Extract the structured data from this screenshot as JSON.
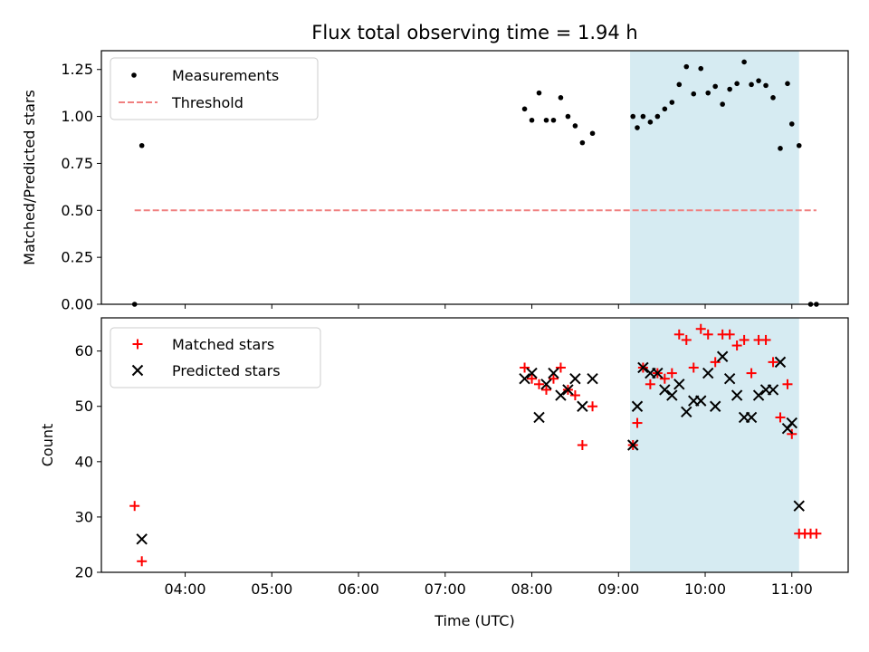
{
  "chart_data": [
    {
      "type": "scatter",
      "title": "Flux total observing time = 1.94 h",
      "xlabel": "",
      "ylabel": "Matched/Predicted stars",
      "ylim": [
        0,
        1.35
      ],
      "yticks": [
        "0.00",
        "0.25",
        "0.50",
        "0.75",
        "1.00",
        "1.25"
      ],
      "xlim": [
        "03:02",
        "11:39"
      ],
      "highlight_span": [
        "09:08",
        "11:05"
      ],
      "highlight_color": "#add8e6",
      "legend_position": "upper left",
      "series": [
        {
          "name": "Measurements",
          "marker": "dot",
          "color": "#000000",
          "points": [
            [
              "03:25",
              0.0
            ],
            [
              "03:30",
              0.845
            ],
            [
              "07:55",
              1.04
            ],
            [
              "08:00",
              0.98
            ],
            [
              "08:05",
              1.125
            ],
            [
              "08:10",
              0.98
            ],
            [
              "08:15",
              0.98
            ],
            [
              "08:20",
              1.1
            ],
            [
              "08:25",
              1.0
            ],
            [
              "08:30",
              0.95
            ],
            [
              "08:35",
              0.86
            ],
            [
              "08:42",
              0.91
            ],
            [
              "09:10",
              1.0
            ],
            [
              "09:13",
              0.94
            ],
            [
              "09:17",
              1.0
            ],
            [
              "09:22",
              0.97
            ],
            [
              "09:27",
              1.0
            ],
            [
              "09:32",
              1.04
            ],
            [
              "09:37",
              1.075
            ],
            [
              "09:42",
              1.17
            ],
            [
              "09:47",
              1.265
            ],
            [
              "09:52",
              1.12
            ],
            [
              "09:57",
              1.255
            ],
            [
              "10:02",
              1.125
            ],
            [
              "10:07",
              1.16
            ],
            [
              "10:12",
              1.065
            ],
            [
              "10:17",
              1.145
            ],
            [
              "10:22",
              1.175
            ],
            [
              "10:27",
              1.29
            ],
            [
              "10:32",
              1.17
            ],
            [
              "10:37",
              1.19
            ],
            [
              "10:42",
              1.165
            ],
            [
              "10:47",
              1.1
            ],
            [
              "10:52",
              0.83
            ],
            [
              "10:57",
              1.175
            ],
            [
              "11:00",
              0.96
            ],
            [
              "11:05",
              0.845
            ],
            [
              "11:13",
              0.0
            ],
            [
              "11:17",
              0.0
            ]
          ]
        },
        {
          "name": "Threshold",
          "marker": "dashed-line",
          "color": "#f08080",
          "points": [
            [
              "03:25",
              0.5
            ],
            [
              "11:17",
              0.5
            ]
          ]
        }
      ]
    },
    {
      "type": "scatter",
      "title": "",
      "xlabel": "Time (UTC)",
      "ylabel": "Count",
      "ylim": [
        20,
        66
      ],
      "yticks": [
        "20",
        "30",
        "40",
        "50",
        "60"
      ],
      "xlim": [
        "03:02",
        "11:39"
      ],
      "xticks": [
        "04:00",
        "05:00",
        "06:00",
        "07:00",
        "08:00",
        "09:00",
        "10:00",
        "11:00"
      ],
      "highlight_span": [
        "09:08",
        "11:05"
      ],
      "highlight_color": "#add8e6",
      "legend_position": "upper left",
      "series": [
        {
          "name": "Matched stars",
          "marker": "plus",
          "color": "#ff0000",
          "points": [
            [
              "03:25",
              32
            ],
            [
              "03:30",
              22
            ],
            [
              "07:55",
              57
            ],
            [
              "08:00",
              55
            ],
            [
              "08:05",
              54
            ],
            [
              "08:10",
              53
            ],
            [
              "08:15",
              55
            ],
            [
              "08:20",
              57
            ],
            [
              "08:25",
              53
            ],
            [
              "08:30",
              52
            ],
            [
              "08:35",
              43
            ],
            [
              "08:42",
              50
            ],
            [
              "09:10",
              43
            ],
            [
              "09:13",
              47
            ],
            [
              "09:17",
              57
            ],
            [
              "09:22",
              54
            ],
            [
              "09:27",
              56
            ],
            [
              "09:32",
              55
            ],
            [
              "09:37",
              56
            ],
            [
              "09:42",
              63
            ],
            [
              "09:47",
              62
            ],
            [
              "09:52",
              57
            ],
            [
              "09:57",
              64
            ],
            [
              "10:02",
              63
            ],
            [
              "10:07",
              58
            ],
            [
              "10:12",
              63
            ],
            [
              "10:17",
              63
            ],
            [
              "10:22",
              61
            ],
            [
              "10:27",
              62
            ],
            [
              "10:32",
              56
            ],
            [
              "10:37",
              62
            ],
            [
              "10:42",
              62
            ],
            [
              "10:47",
              58
            ],
            [
              "10:52",
              48
            ],
            [
              "10:57",
              54
            ],
            [
              "11:00",
              45
            ],
            [
              "11:05",
              27
            ],
            [
              "11:09",
              27
            ],
            [
              "11:13",
              27
            ],
            [
              "11:17",
              27
            ]
          ]
        },
        {
          "name": "Predicted stars",
          "marker": "x",
          "color": "#000000",
          "points": [
            [
              "03:30",
              26
            ],
            [
              "07:55",
              55
            ],
            [
              "08:00",
              56
            ],
            [
              "08:05",
              48
            ],
            [
              "08:10",
              54
            ],
            [
              "08:15",
              56
            ],
            [
              "08:20",
              52
            ],
            [
              "08:25",
              53
            ],
            [
              "08:30",
              55
            ],
            [
              "08:35",
              50
            ],
            [
              "08:42",
              55
            ],
            [
              "09:10",
              43
            ],
            [
              "09:13",
              50
            ],
            [
              "09:17",
              57
            ],
            [
              "09:22",
              56
            ],
            [
              "09:27",
              56
            ],
            [
              "09:32",
              53
            ],
            [
              "09:37",
              52
            ],
            [
              "09:42",
              54
            ],
            [
              "09:47",
              49
            ],
            [
              "09:52",
              51
            ],
            [
              "09:57",
              51
            ],
            [
              "10:02",
              56
            ],
            [
              "10:07",
              50
            ],
            [
              "10:12",
              59
            ],
            [
              "10:17",
              55
            ],
            [
              "10:22",
              52
            ],
            [
              "10:27",
              48
            ],
            [
              "10:32",
              48
            ],
            [
              "10:37",
              52
            ],
            [
              "10:42",
              53
            ],
            [
              "10:47",
              53
            ],
            [
              "10:52",
              58
            ],
            [
              "10:57",
              46
            ],
            [
              "11:00",
              47
            ],
            [
              "11:05",
              32
            ]
          ]
        }
      ]
    }
  ]
}
